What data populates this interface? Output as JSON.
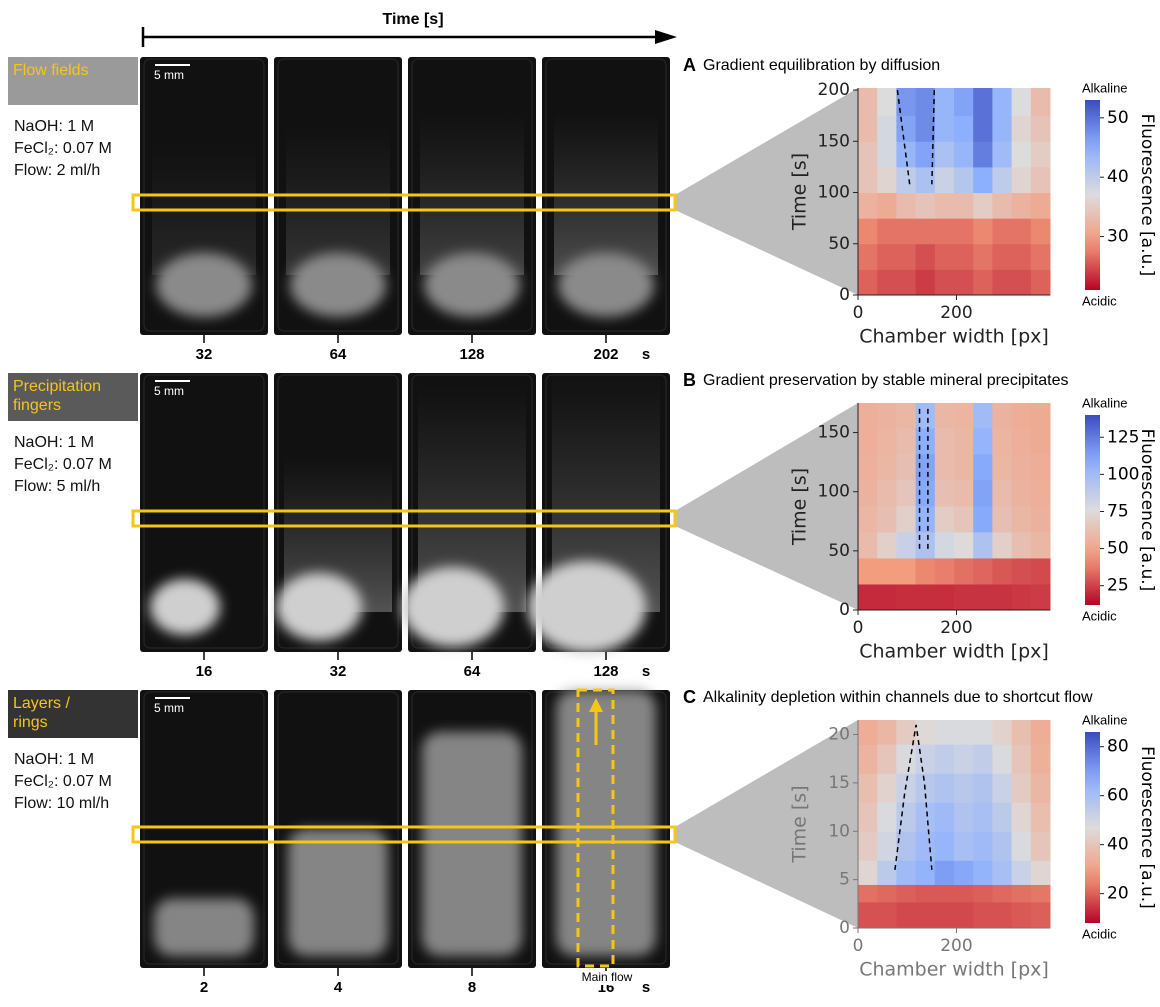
{
  "time_axis_label": "Time [s]",
  "main_flow_label": "Main flow",
  "rows": [
    {
      "label": [
        "Flow fields"
      ],
      "conditions": [
        "NaOH: 1 M",
        "FeCl₂: 0.07 M",
        "Flow: 2 ml/h"
      ],
      "scale_bar": "5 mm",
      "times": [
        32,
        64,
        128,
        202
      ],
      "time_unit": "s"
    },
    {
      "label": [
        "Precipitation",
        "fingers"
      ],
      "conditions": [
        "NaOH: 1 M",
        "FeCl₂: 0.07 M",
        "Flow: 5 ml/h"
      ],
      "scale_bar": "5 mm",
      "times": [
        16,
        32,
        64,
        128
      ],
      "time_unit": "s"
    },
    {
      "label": [
        "Layers /",
        "rings"
      ],
      "conditions": [
        "NaOH: 1 M",
        "FeCl₂: 0.07 M",
        "Flow: 10 ml/h"
      ],
      "scale_bar": "5 mm",
      "times": [
        2,
        4,
        8,
        16
      ],
      "time_unit": "s"
    }
  ],
  "chart_data": [
    {
      "type": "heatmap",
      "panel": "A",
      "title": "Gradient equilibration by diffusion",
      "xlabel": "Chamber width [px]",
      "ylabel": "Time [s]",
      "label_color": "#222222",
      "colorbar_label": "Fluorescence [a.u.]",
      "colorbar_top": "Alkaline",
      "colorbar_bottom": "Acidic",
      "xlim": [
        0,
        390
      ],
      "ylim": [
        0,
        202
      ],
      "xticks": [
        0,
        200
      ],
      "yticks": [
        0,
        50,
        100,
        150,
        200
      ],
      "clim": [
        21,
        53
      ],
      "cticks": [
        30,
        40,
        50
      ],
      "x_edges": [
        0,
        39,
        78,
        117,
        156,
        195,
        234,
        273,
        312,
        351,
        390
      ],
      "y_edges": [
        0,
        25,
        50,
        75,
        100,
        125,
        150,
        175,
        202
      ],
      "z": [
        [
          26,
          25,
          25,
          24,
          25,
          25,
          26,
          25,
          25,
          26
        ],
        [
          27,
          26,
          26,
          25,
          26,
          26,
          27,
          26,
          26,
          27
        ],
        [
          28,
          27,
          27,
          27,
          27,
          27,
          28,
          27,
          27,
          28
        ],
        [
          32,
          31,
          33,
          34,
          33,
          33,
          35,
          33,
          32,
          31
        ],
        [
          34,
          36,
          40,
          42,
          39,
          41,
          45,
          40,
          36,
          34
        ],
        [
          34,
          38,
          44,
          46,
          42,
          44,
          49,
          43,
          37,
          35
        ],
        [
          33,
          38,
          46,
          48,
          44,
          45,
          50,
          44,
          36,
          34
        ],
        [
          33,
          37,
          47,
          48,
          44,
          46,
          50,
          44,
          37,
          33
        ]
      ],
      "dashed_lines": [
        {
          "x": [
            80,
            105
          ],
          "y": [
            200,
            108
          ]
        },
        {
          "x": [
            155,
            150
          ],
          "y": [
            200,
            108
          ]
        }
      ]
    },
    {
      "type": "heatmap",
      "panel": "B",
      "title": "Gradient preservation by stable mineral precipitates",
      "xlabel": "Chamber width [px]",
      "ylabel": "Time [s]",
      "label_color": "#222222",
      "colorbar_label": "Fluorescence [a.u.]",
      "colorbar_top": "Alkaline",
      "colorbar_bottom": "Acidic",
      "xlim": [
        0,
        390
      ],
      "ylim": [
        0,
        175
      ],
      "xticks": [
        0,
        200
      ],
      "yticks": [
        0,
        50,
        100,
        150
      ],
      "clim": [
        12,
        140
      ],
      "cticks": [
        25,
        50,
        75,
        100,
        125
      ],
      "x_edges": [
        0,
        39,
        78,
        117,
        156,
        195,
        234,
        273,
        312,
        351,
        390
      ],
      "y_edges": [
        0,
        22,
        44,
        66,
        88,
        110,
        132,
        154,
        175
      ],
      "z": [
        [
          20,
          20,
          21,
          21,
          21,
          22,
          22,
          22,
          23,
          24
        ],
        [
          45,
          45,
          45,
          40,
          38,
          35,
          33,
          30,
          28,
          27
        ],
        [
          60,
          70,
          85,
          95,
          80,
          75,
          95,
          70,
          62,
          58
        ],
        [
          58,
          62,
          70,
          105,
          68,
          65,
          110,
          62,
          58,
          55
        ],
        [
          56,
          60,
          65,
          110,
          62,
          60,
          112,
          60,
          56,
          54
        ],
        [
          55,
          58,
          62,
          112,
          60,
          58,
          110,
          58,
          55,
          53
        ],
        [
          54,
          57,
          60,
          108,
          60,
          58,
          105,
          57,
          54,
          52
        ],
        [
          54,
          56,
          58,
          100,
          58,
          57,
          100,
          56,
          53,
          52
        ]
      ],
      "dashed_lines": [
        {
          "x": [
            125,
            125
          ],
          "y": [
            170,
            50
          ]
        },
        {
          "x": [
            142,
            142
          ],
          "y": [
            170,
            50
          ]
        }
      ]
    },
    {
      "type": "heatmap",
      "panel": "C",
      "title": "Alkalinity depletion within channels due to shortcut flow",
      "xlabel": "Chamber width [px]",
      "ylabel": "Time [s]",
      "label_color": "#777777",
      "colorbar_label": "Fluorescence [a.u.]",
      "colorbar_top": "Alkaline",
      "colorbar_bottom": "Acidic",
      "xlim": [
        0,
        390
      ],
      "ylim": [
        0,
        21.5
      ],
      "xticks": [
        0,
        200
      ],
      "yticks": [
        0,
        5,
        10,
        15,
        20
      ],
      "clim": [
        8,
        86
      ],
      "cticks": [
        20,
        40,
        60,
        80
      ],
      "x_edges": [
        0,
        39,
        78,
        117,
        156,
        195,
        234,
        273,
        312,
        351,
        390
      ],
      "y_edges": [
        0,
        2.7,
        4.5,
        7,
        10,
        13,
        16,
        19,
        21.5
      ],
      "z": [
        [
          18,
          18,
          17,
          17,
          17,
          17,
          18,
          18,
          19,
          20
        ],
        [
          22,
          21,
          20,
          19,
          19,
          19,
          20,
          21,
          22,
          23
        ],
        [
          45,
          55,
          62,
          65,
          70,
          68,
          65,
          60,
          52,
          45
        ],
        [
          42,
          50,
          58,
          62,
          64,
          60,
          62,
          58,
          48,
          40
        ],
        [
          40,
          48,
          55,
          60,
          62,
          58,
          60,
          55,
          45,
          38
        ],
        [
          38,
          44,
          52,
          56,
          58,
          56,
          58,
          52,
          42,
          36
        ],
        [
          35,
          40,
          48,
          52,
          54,
          52,
          54,
          48,
          40,
          34
        ],
        [
          33,
          36,
          42,
          46,
          48,
          48,
          48,
          44,
          38,
          33
        ]
      ],
      "dashed_lines": [
        {
          "x": [
            75,
            95,
            118,
            135,
            150
          ],
          "y": [
            6,
            14,
            21,
            15,
            6
          ]
        }
      ]
    }
  ]
}
